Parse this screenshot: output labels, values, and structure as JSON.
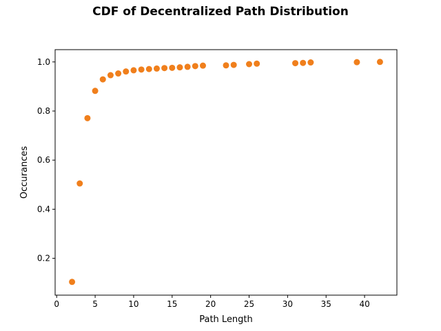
{
  "chart_data": {
    "type": "scatter",
    "title": "CDF of Decentralized Path Distribution",
    "xlabel": "Path Length",
    "ylabel": "Occurances",
    "xlim": [
      -0.2,
      44.2
    ],
    "ylim": [
      0.05,
      1.05
    ],
    "x_ticks": [
      0,
      5,
      10,
      15,
      20,
      25,
      30,
      35,
      40
    ],
    "y_ticks": [
      0.2,
      0.4,
      0.6,
      0.8,
      1.0
    ],
    "x_tick_labels": [
      "0",
      "5",
      "10",
      "15",
      "20",
      "25",
      "30",
      "35",
      "40"
    ],
    "y_tick_labels": [
      "0.2",
      "0.4",
      "0.6",
      "0.8",
      "1.0"
    ],
    "grid": false,
    "legend": false,
    "marker_color": "#f07f1c",
    "series": [
      {
        "x": [
          2,
          3,
          4,
          5,
          6,
          7,
          8,
          9,
          10,
          11,
          12,
          13,
          14,
          15,
          16,
          17,
          18,
          19,
          22,
          23,
          25,
          26,
          31,
          32,
          33,
          39,
          42
        ],
        "y": [
          0.104,
          0.505,
          0.771,
          0.882,
          0.929,
          0.946,
          0.953,
          0.961,
          0.966,
          0.969,
          0.971,
          0.973,
          0.975,
          0.976,
          0.978,
          0.98,
          0.983,
          0.985,
          0.986,
          0.988,
          0.991,
          0.993,
          0.995,
          0.996,
          0.998,
          0.999,
          1.0
        ]
      }
    ]
  }
}
